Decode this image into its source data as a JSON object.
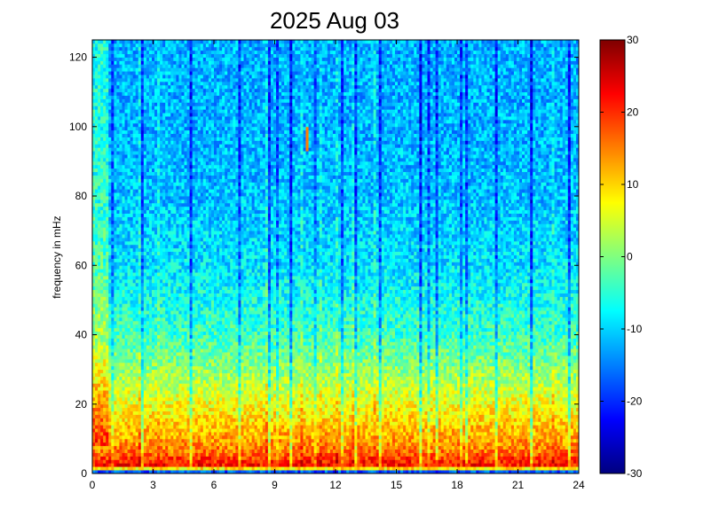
{
  "chart_data": {
    "type": "heatmap",
    "title": "2025 Aug 03",
    "xlabel": "",
    "ylabel": "frequency in mHz",
    "xlim": [
      0,
      24
    ],
    "ylim": [
      0,
      125
    ],
    "xticks": [
      0,
      3,
      6,
      9,
      12,
      15,
      18,
      21,
      24
    ],
    "xtick_labels": [
      "0",
      "3",
      "6",
      "9",
      "12",
      "15",
      "18",
      "21",
      "24"
    ],
    "yticks": [
      0,
      20,
      40,
      60,
      80,
      100,
      120
    ],
    "ytick_labels": [
      "0",
      "20",
      "40",
      "60",
      "80",
      "100",
      "120"
    ],
    "colorbar": {
      "colormap": "jet",
      "clim": [
        -30,
        30
      ],
      "ticks": [
        -30,
        -20,
        -10,
        0,
        10,
        20,
        30
      ],
      "tick_labels": [
        "-30",
        "-20",
        "-10",
        "0",
        "10",
        "20",
        "30"
      ]
    },
    "grid": false,
    "legend": "none",
    "value_profile_by_frequency": {
      "frequency": [
        0,
        1,
        2,
        4,
        6,
        10,
        15,
        20,
        30,
        40,
        60,
        80,
        100,
        125
      ],
      "approx_level": [
        -30,
        -5,
        22,
        20,
        16,
        13,
        10,
        7,
        1,
        -4,
        -9,
        -11,
        -12,
        -12
      ]
    },
    "features": [
      {
        "description": "narrow high-power feature",
        "time_hours": 10.6,
        "frequency_range": [
          93,
          100
        ],
        "approx_level": 15
      }
    ]
  }
}
